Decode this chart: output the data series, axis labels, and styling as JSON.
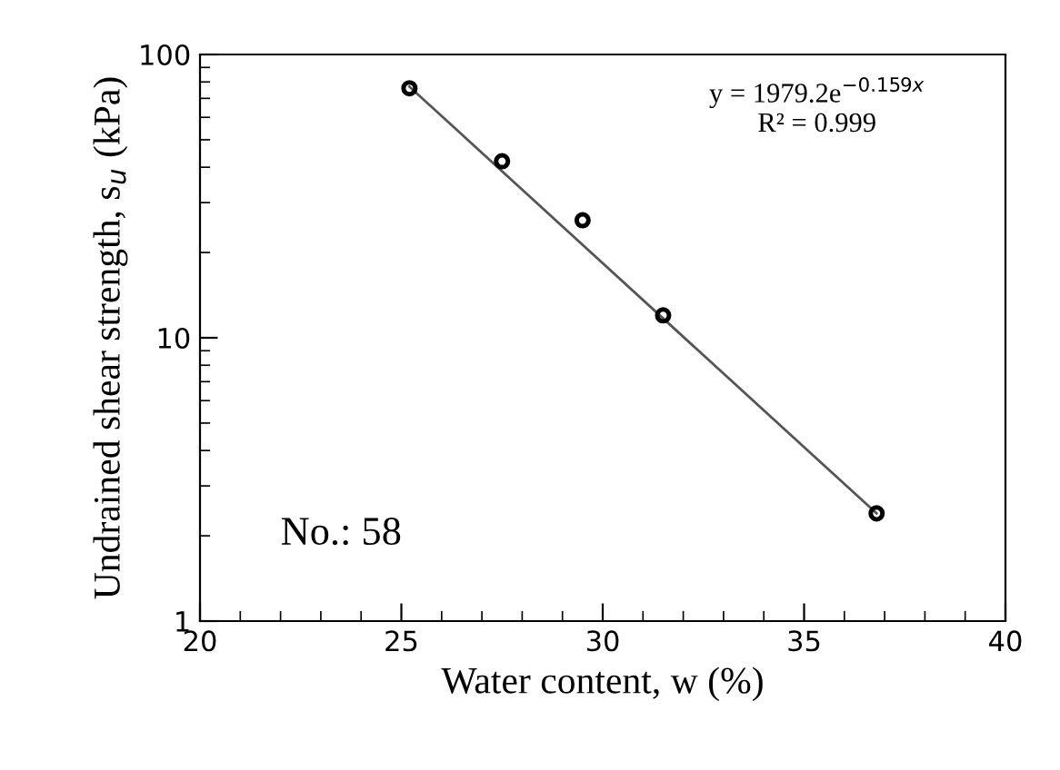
{
  "chart_data": {
    "type": "scatter",
    "xlabel": "Water content, w (%)",
    "ylabel": "Undrained shear strength, s$_{u}$ (kPa)",
    "series": [
      {
        "color": "#000000",
        "marker": "circle",
        "x": [
          25.2,
          27.5,
          29.5,
          31.5,
          36.8
        ],
        "values": [
          76,
          42,
          26,
          12,
          2.4
        ]
      },
      {
        "type": "line",
        "color": "#555555",
        "marker": "none",
        "line_style": "solid",
        "x": [
          25.2,
          36.8
        ],
        "values": [
          77,
          2.4
        ]
      }
    ],
    "log": "y",
    "xlim": [
      20,
      40
    ],
    "xticks": [
      20,
      25,
      30,
      35,
      40
    ],
    "ylim": [
      1,
      100
    ],
    "yticks": [
      1,
      10,
      100
    ],
    "grid": false,
    "legend": false,
    "annotations": [
      "y = 1979.2e$^{−0.159x}$\nR² = 0.999",
      "No.: 58"
    ]
  }
}
